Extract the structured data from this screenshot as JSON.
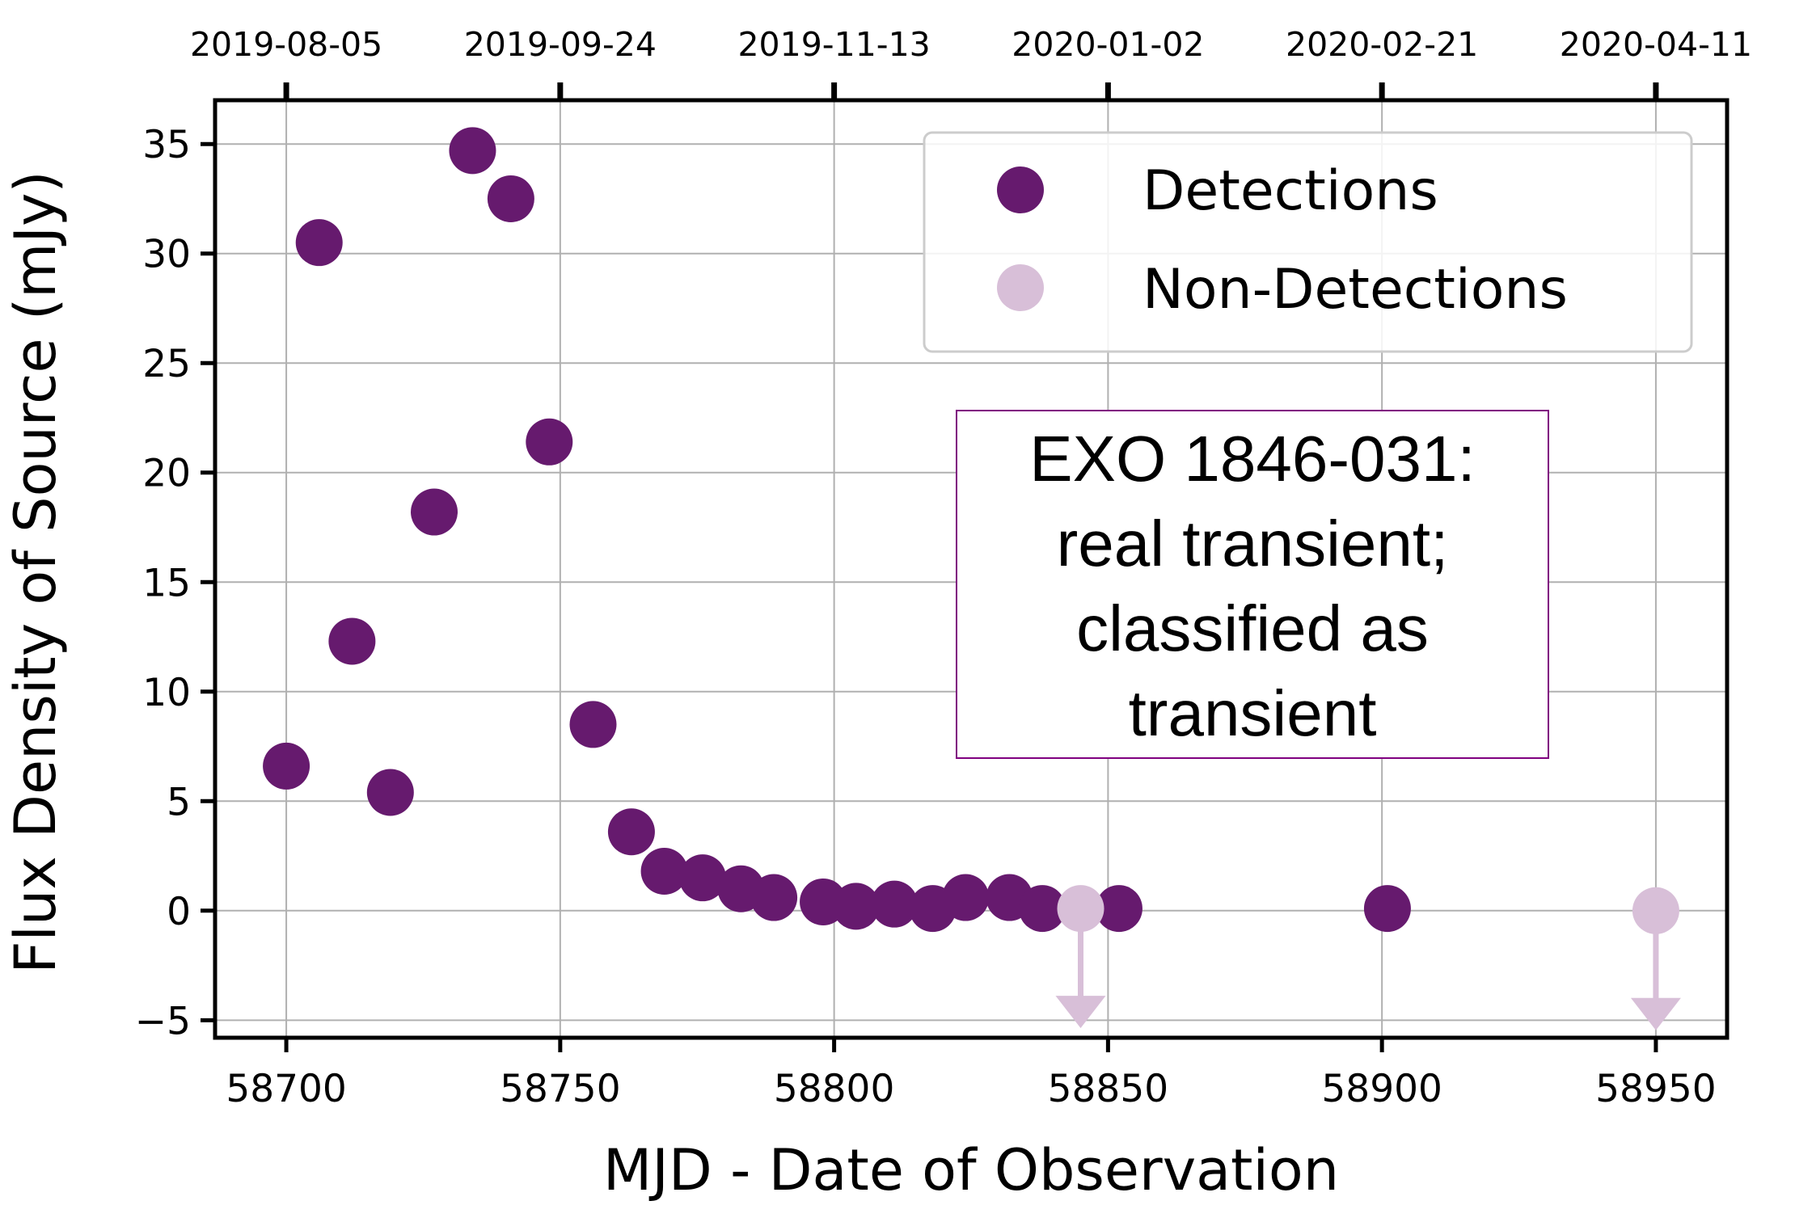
{
  "chart_data": {
    "type": "scatter",
    "title": "",
    "xlabel": "MJD - Date of Observation",
    "ylabel": "Flux Density of Source (mJy)",
    "xlim": [
      58687,
      58963
    ],
    "ylim": [
      -5.8,
      37
    ],
    "x_ticks": [
      58700,
      58750,
      58800,
      58850,
      58900,
      58950
    ],
    "y_ticks": [
      -5,
      0,
      5,
      10,
      15,
      20,
      25,
      30,
      35
    ],
    "y_tick_labels": [
      "−5",
      "0",
      "5",
      "10",
      "15",
      "20",
      "25",
      "30",
      "35"
    ],
    "top_axis": {
      "ticks": [
        58700,
        58750,
        58800,
        58850,
        58900,
        58950
      ],
      "labels": [
        "2019-08-05",
        "2019-09-24",
        "2019-11-13",
        "2020-01-02",
        "2020-02-21",
        "2020-04-11"
      ]
    },
    "grid": true,
    "legend_position": "top-right",
    "series": [
      {
        "name": "Detections",
        "color": "#661a6e",
        "marker": "circle",
        "points": [
          {
            "x": 58700,
            "y": 6.6
          },
          {
            "x": 58706,
            "y": 30.5
          },
          {
            "x": 58712,
            "y": 12.3
          },
          {
            "x": 58719,
            "y": 5.4
          },
          {
            "x": 58727,
            "y": 18.2
          },
          {
            "x": 58734,
            "y": 34.7
          },
          {
            "x": 58741,
            "y": 32.5
          },
          {
            "x": 58748,
            "y": 21.4
          },
          {
            "x": 58756,
            "y": 8.5
          },
          {
            "x": 58763,
            "y": 3.6
          },
          {
            "x": 58769,
            "y": 1.8
          },
          {
            "x": 58776,
            "y": 1.5
          },
          {
            "x": 58783,
            "y": 1.0
          },
          {
            "x": 58789,
            "y": 0.6
          },
          {
            "x": 58798,
            "y": 0.4
          },
          {
            "x": 58804,
            "y": 0.2
          },
          {
            "x": 58811,
            "y": 0.3
          },
          {
            "x": 58818,
            "y": 0.1
          },
          {
            "x": 58824,
            "y": 0.6
          },
          {
            "x": 58832,
            "y": 0.6
          },
          {
            "x": 58838,
            "y": 0.1
          },
          {
            "x": 58852,
            "y": 0.1
          },
          {
            "x": 58901,
            "y": 0.1
          }
        ]
      },
      {
        "name": "Non-Detections",
        "color": "#d8bfd8",
        "marker": "circle",
        "upper_limit": true,
        "points": [
          {
            "x": 58845,
            "y": 0.1
          },
          {
            "x": 58950,
            "y": 0.0
          }
        ]
      }
    ],
    "annotation": {
      "lines": [
        "EXO 1846-031:",
        "real transient;",
        "classified as",
        "transient"
      ],
      "border_color": "#800080"
    }
  }
}
